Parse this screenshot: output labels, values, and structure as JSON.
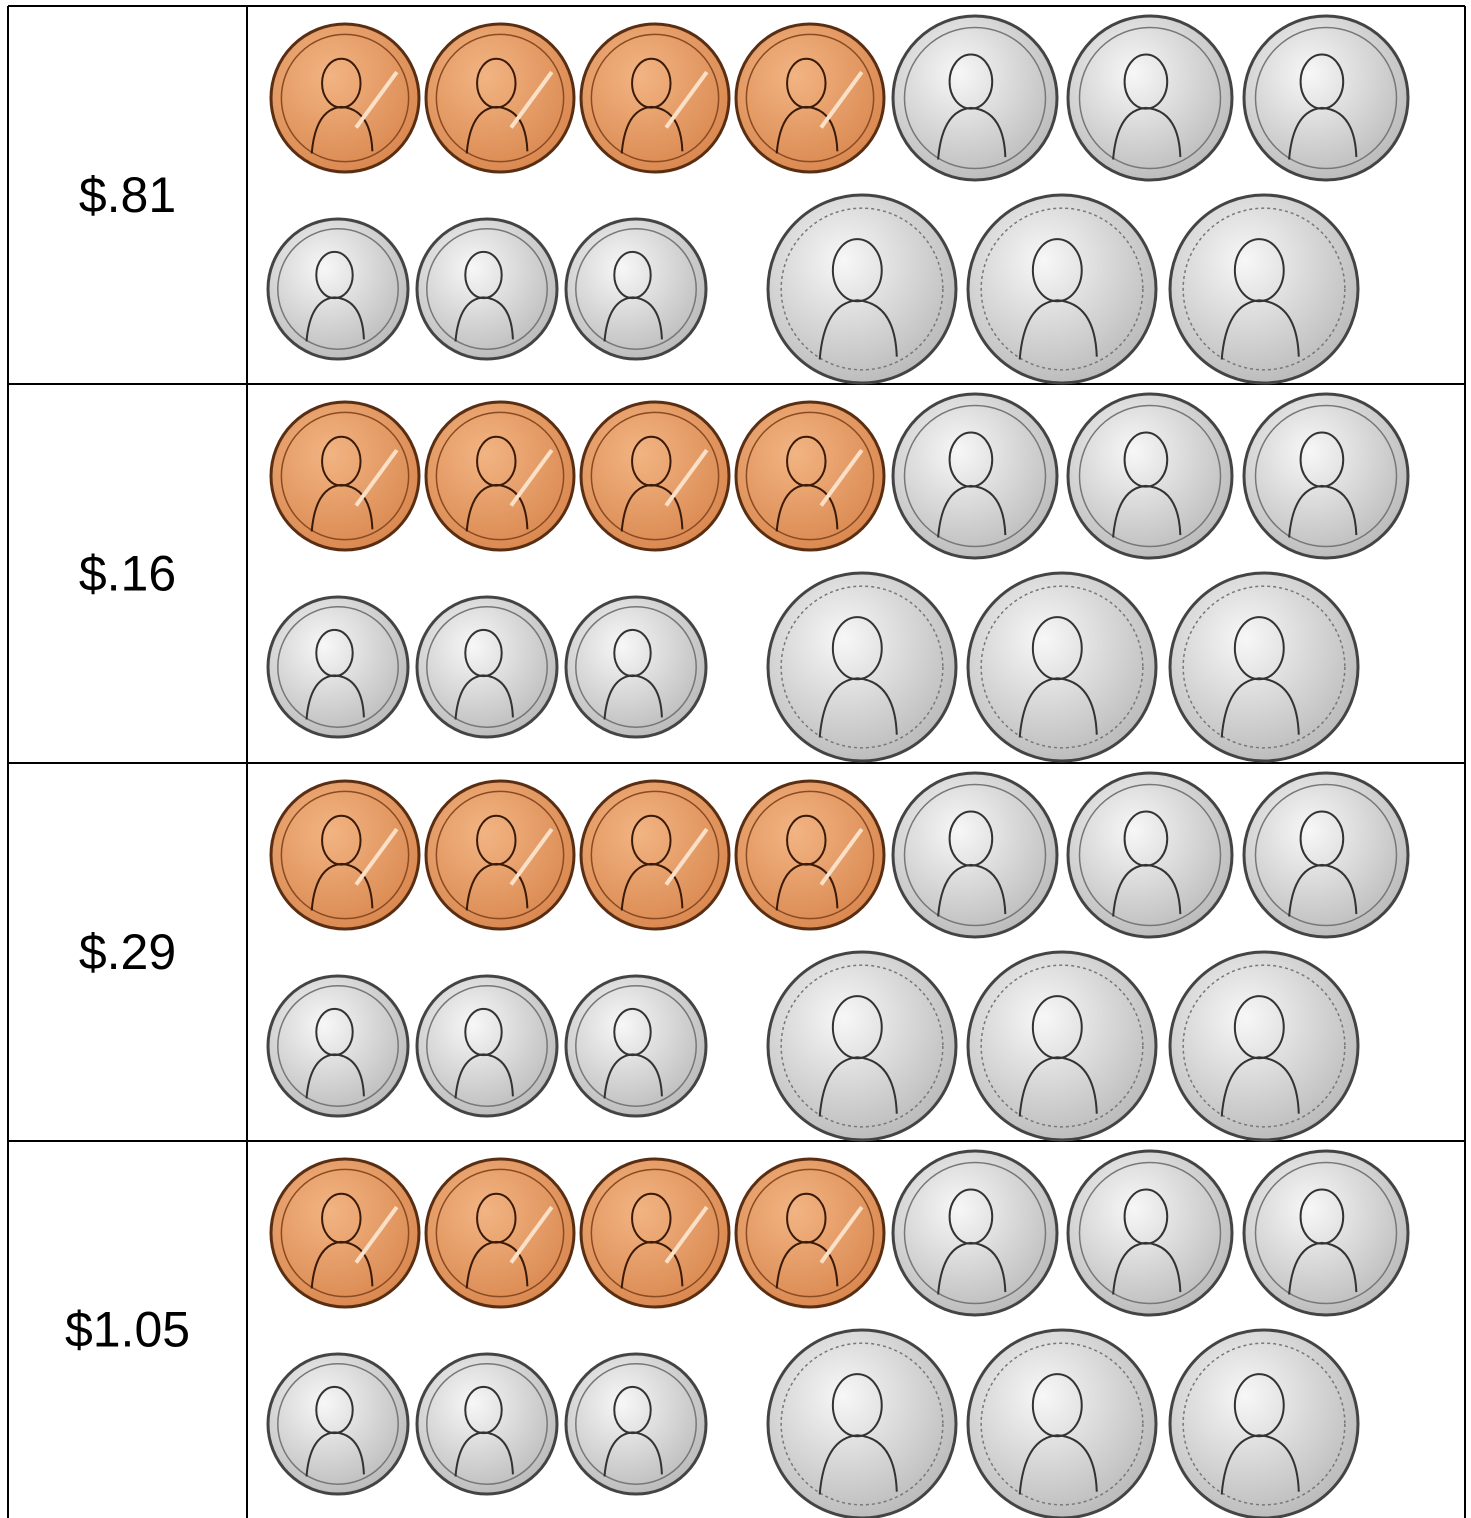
{
  "rows": [
    {
      "amount": "$.81"
    },
    {
      "amount": "$.16"
    },
    {
      "amount": "$.29"
    },
    {
      "amount": "$1.05"
    }
  ]
}
